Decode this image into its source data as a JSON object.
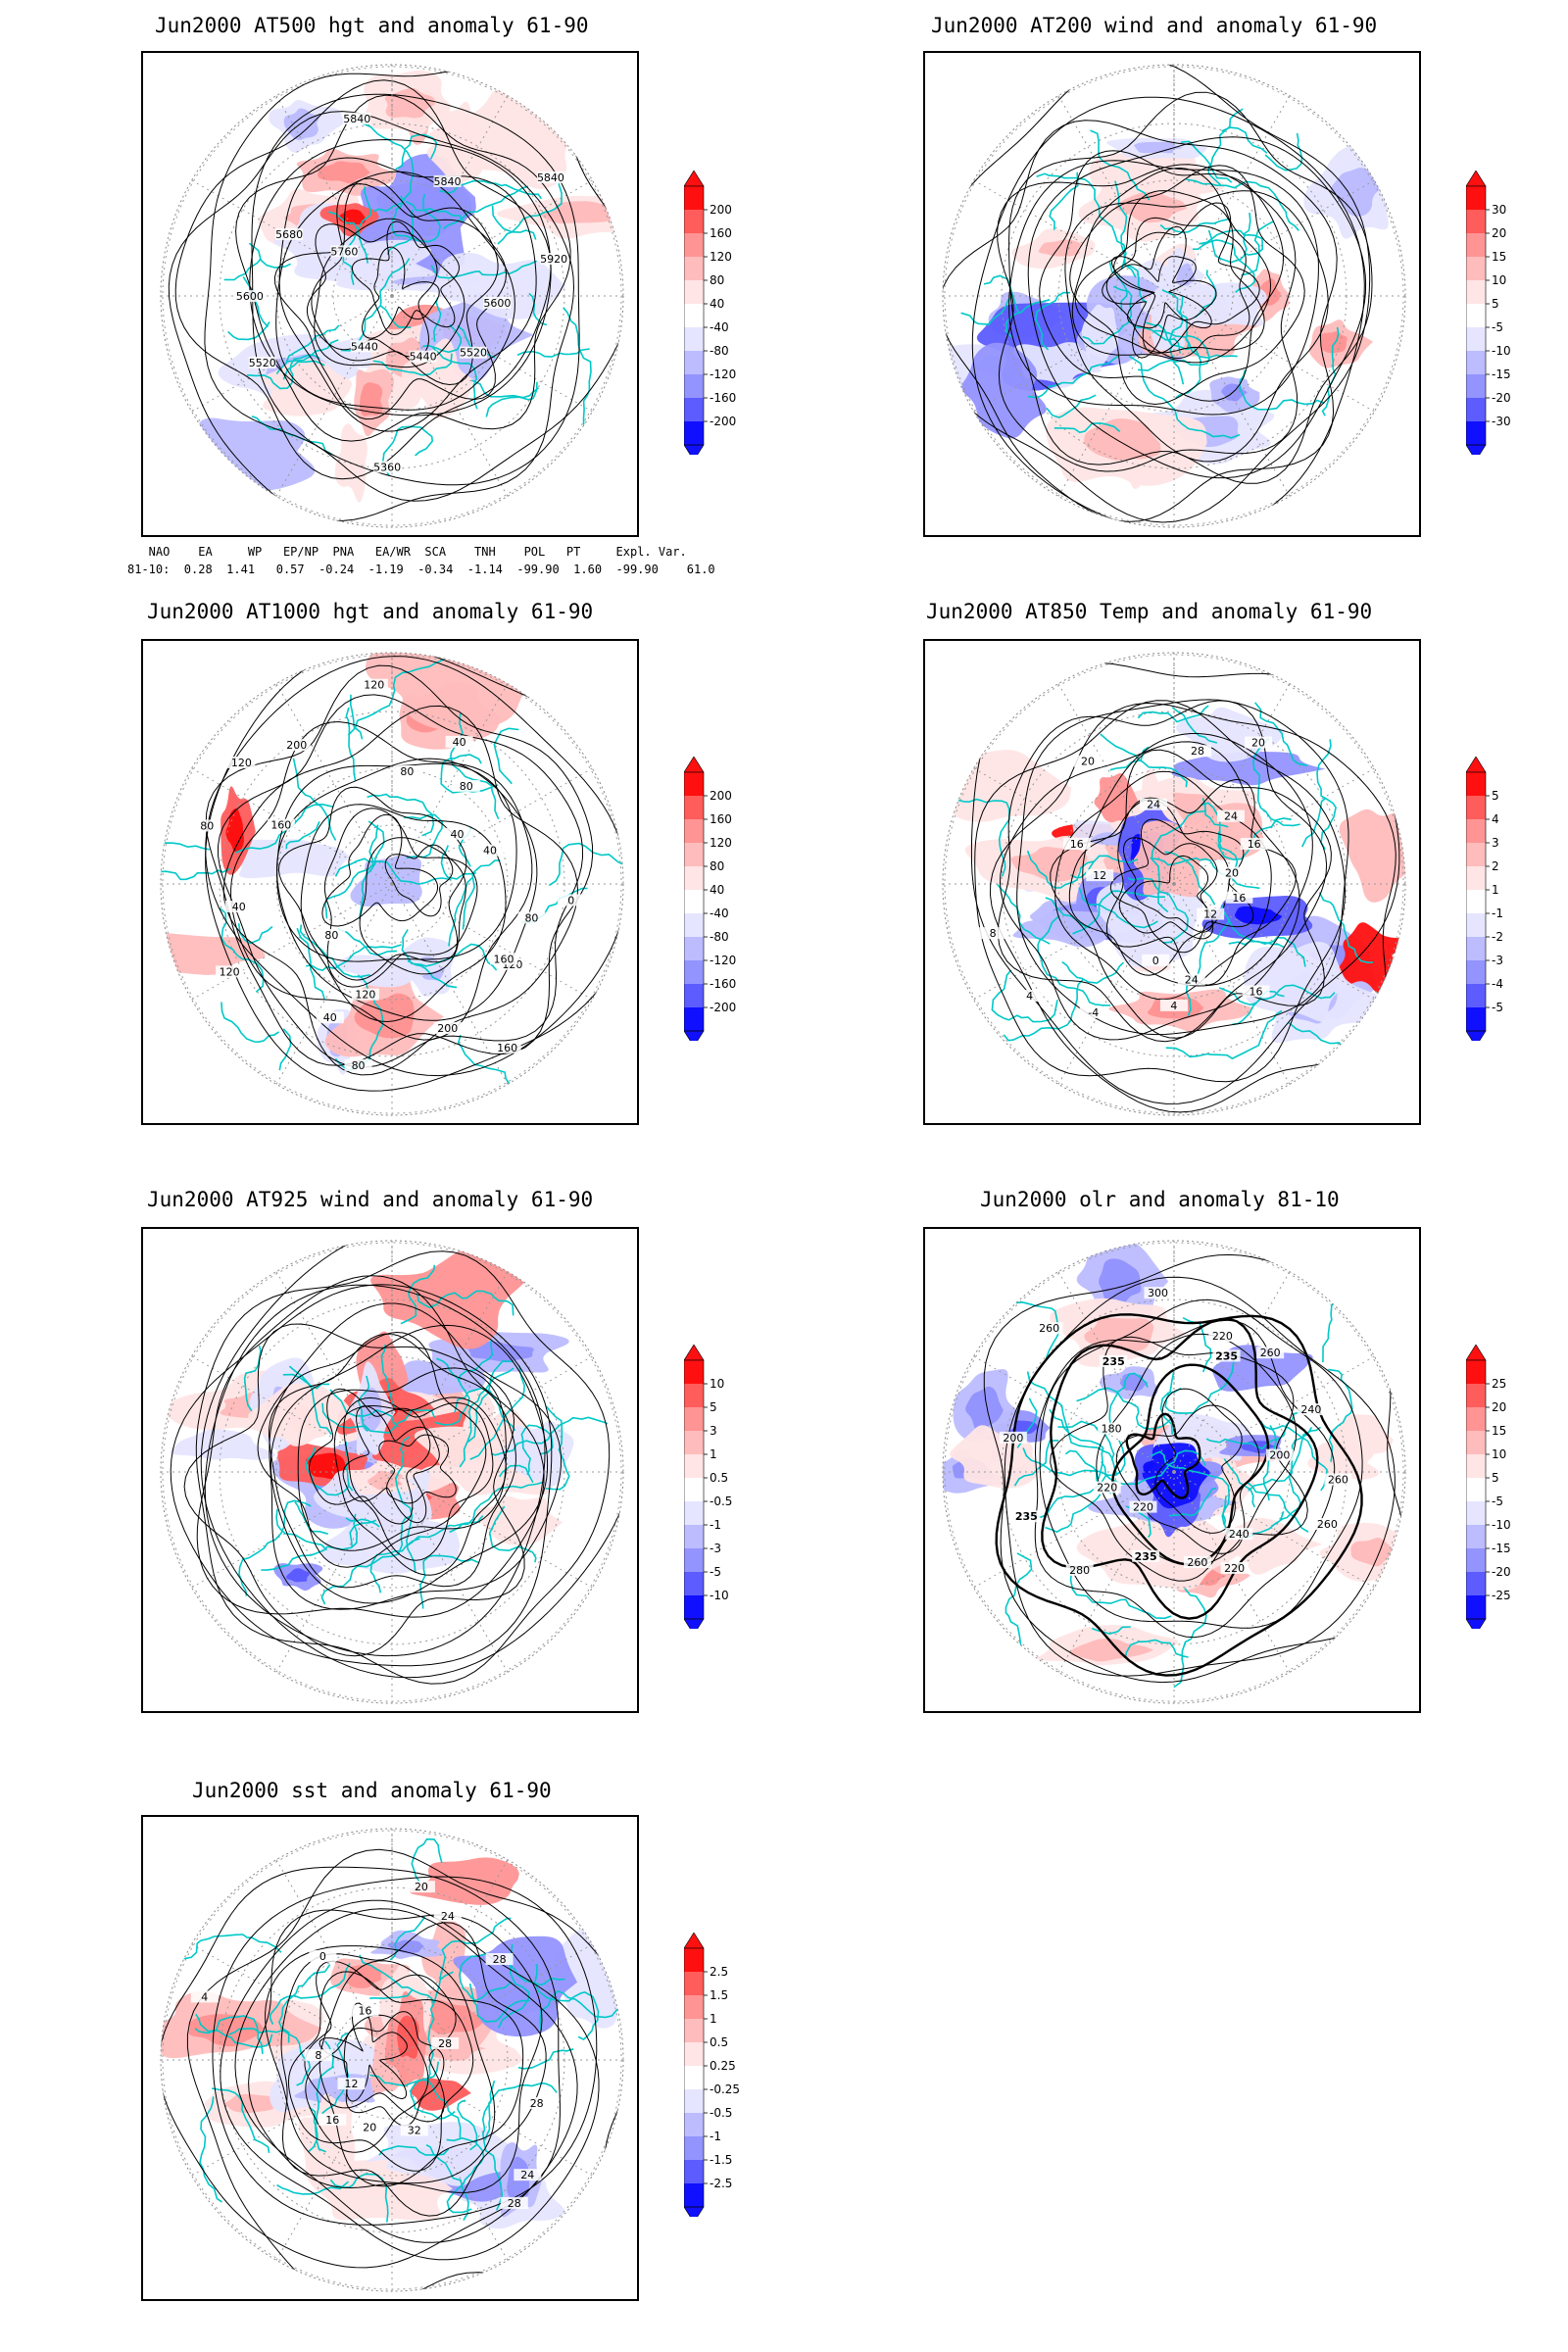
{
  "panels": [
    {
      "title": "Jun2000 AT500 hgt and anomaly 61-90",
      "colorbar": [
        "200",
        "160",
        "120",
        "80",
        "40",
        "-40",
        "-80",
        "-120",
        "-160",
        "-200"
      ],
      "contour_labels": [
        "5600",
        "5520",
        "5440",
        "5360",
        "5440",
        "5520",
        "5600",
        "5680",
        "5760",
        "5840",
        "5840",
        "5840",
        "5920"
      ],
      "field": "height"
    },
    {
      "title": "Jun2000 AT200 wind and anomaly 61-90",
      "colorbar": [
        "30",
        "20",
        "15",
        "10",
        "5",
        "-5",
        "-10",
        "-15",
        "-20",
        "-30"
      ],
      "contour_labels": [],
      "field": "wind"
    },
    {
      "title": "Jun2000 AT1000 hgt and anomaly 61-90",
      "colorbar": [
        "200",
        "160",
        "120",
        "80",
        "40",
        "-40",
        "-80",
        "-120",
        "-160",
        "-200"
      ],
      "contour_labels": [
        "80",
        "120",
        "160",
        "160",
        "200",
        "120",
        "80",
        "40",
        "80",
        "120",
        "40",
        "80",
        "160",
        "120",
        "200",
        "120",
        "80",
        "40",
        "80",
        "40",
        "40",
        "0"
      ],
      "field": "height"
    },
    {
      "title": "Jun2000 AT850 Temp and anomaly 61-90",
      "colorbar": [
        "5",
        "4",
        "3",
        "2",
        "1",
        "-1",
        "-2",
        "-3",
        "-4",
        "-5"
      ],
      "contour_labels": [
        "16",
        "12",
        "16",
        "24",
        "4",
        "0",
        "-4",
        "4",
        "8",
        "12",
        "16",
        "20",
        "24",
        "28",
        "20",
        "24",
        "16",
        "20"
      ],
      "field": "temp"
    },
    {
      "title": "Jun2000 AT925 wind and anomaly 61-90",
      "colorbar": [
        "10",
        "5",
        "3",
        "1",
        "0.5",
        "-0.5",
        "-1",
        "-3",
        "-5",
        "-10"
      ],
      "contour_labels": [],
      "field": "wind"
    },
    {
      "title": "Jun2000 olr and anomaly 81-10",
      "colorbar": [
        "25",
        "20",
        "15",
        "10",
        "5",
        "-5",
        "-10",
        "-15",
        "-20",
        "-25"
      ],
      "contour_labels": [
        "260",
        "260",
        "240",
        "220",
        "260",
        "235",
        "220",
        "280",
        "235",
        "220",
        "200",
        "180",
        "260",
        "235",
        "300",
        "220",
        "235",
        "260",
        "240",
        "200"
      ],
      "field": "olr"
    },
    {
      "title": "Jun2000 sst and anomaly 61-90",
      "colorbar": [
        "2.5",
        "1.5",
        "1",
        "0.5",
        "0.25",
        "-0.25",
        "-0.5",
        "-1",
        "-1.5",
        "-2.5"
      ],
      "contour_labels": [
        "28",
        "24",
        "28",
        "32",
        "20",
        "16",
        "12",
        "8",
        "4",
        "0",
        "16",
        "20",
        "24",
        "28",
        "28"
      ],
      "field": "sst"
    }
  ],
  "teleconnection": {
    "header": "   NAO    EA     WP   EP/NP  PNA   EA/WR  SCA    TNH    POL   PT     Expl. Var.",
    "row": "81-10:  0.28  1.41   0.57  -0.24  -1.19  -0.34  -1.14  -99.90  1.60  -99.90    61.0"
  },
  "colors": {
    "coastline": "#00c8c8",
    "positive": [
      "#ffe5e5",
      "#ffbcbc",
      "#ff9494",
      "#ff5c5c",
      "#ff1010"
    ],
    "negative": [
      "#e5e5ff",
      "#bcbcff",
      "#9494ff",
      "#5c5cff",
      "#1010ff"
    ]
  }
}
